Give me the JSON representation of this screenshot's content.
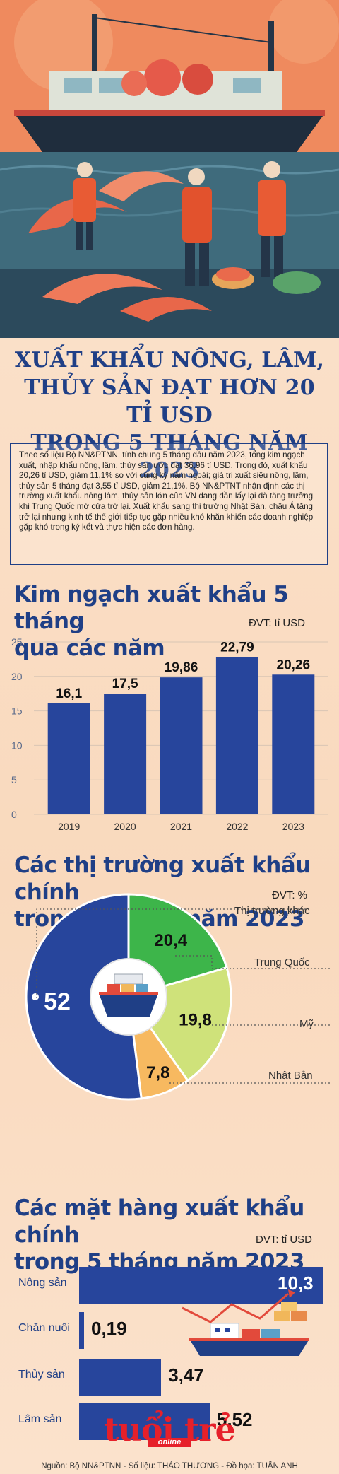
{
  "title": {
    "line1": "XUẤT KHẨU NÔNG, LÂM,",
    "line2": "THỦY SẢN ĐẠT HƠN 20 TỈ USD",
    "line3": "TRONG 5 THÁNG NĂM 2023"
  },
  "intro": "Theo số liệu Bộ NN&PTNN, tính chung 5 tháng đầu năm 2023, tổng kim ngạch xuất, nhập khẩu nông, lâm, thủy sản ước đạt 36,96 tỉ USD. Trong đó, xuất khẩu 20,26 tỉ USD, giảm 11,1% so với cùng kỳ năm ngoái; giá trị xuất siêu nông, lâm, thủy sản 5 tháng đạt 3,55 tỉ USD, giảm 21,1%. Bộ NN&PTNT nhận định các thị trường xuất khẩu nông lâm, thủy sản lớn của VN đang dần lấy lại đà tăng trưởng khi Trung Quốc mở cửa trở lại. Xuất khẩu sang thị trường Nhật Bản, châu Á tăng trở lại nhưng kinh tế thế giới tiếp tục gặp nhiều khó khăn khiến các doanh nghiệp gặp khó trong ký kết và thực hiện các đơn hàng.",
  "chart_data": [
    {
      "type": "bar",
      "title": "Kim ngạch xuất khẩu 5 tháng qua các năm",
      "unit": "ĐVT: tỉ USD",
      "categories": [
        "2019",
        "2020",
        "2021",
        "2022",
        "2023"
      ],
      "values": [
        16.1,
        17.5,
        19.86,
        22.79,
        20.26
      ],
      "value_labels": [
        "16,1",
        "17,5",
        "19,86",
        "22,79",
        "20,26"
      ],
      "yticks": [
        "0",
        "5",
        "10",
        "15",
        "20",
        "25"
      ],
      "ylim": [
        0,
        25
      ],
      "grid": true,
      "color": "#27459c"
    },
    {
      "type": "pie",
      "title": "Các thị trường xuất khẩu chính trong 5 tháng năm 2023",
      "unit": "ĐVT: %",
      "slices": [
        {
          "label": "Trung Quốc",
          "value": 20.4,
          "value_label": "20,4",
          "color": "#3db54a"
        },
        {
          "label": "Mỹ",
          "value": 19.8,
          "value_label": "19,8",
          "color": "#cfe27a"
        },
        {
          "label": "Nhật Bản",
          "value": 7.8,
          "value_label": "7,8",
          "color": "#f7b960"
        },
        {
          "label": "Thị trường khác",
          "value": 52,
          "value_label": "52",
          "color": "#27459c"
        }
      ]
    },
    {
      "type": "bar",
      "orientation": "horizontal",
      "title": "Các mặt hàng xuất khẩu chính trong 5 tháng năm 2023",
      "unit": "ĐVT: tỉ USD",
      "categories": [
        "Nông sản",
        "Chăn nuôi",
        "Thủy sản",
        "Lâm sản"
      ],
      "values": [
        10.3,
        0.19,
        3.47,
        5.52
      ],
      "value_labels": [
        "10,3",
        "0,19",
        "3,47",
        "5,52"
      ],
      "color": "#27459c"
    }
  ],
  "bar_title": {
    "line1": "Kim ngạch xuất khẩu 5 tháng",
    "line2": "qua các năm"
  },
  "pie_title": {
    "line1": "Các thị trường xuất khẩu chính",
    "line2": "trong 5 tháng năm 2023"
  },
  "prod_title": {
    "line1": "Các mặt hàng xuất khẩu chính",
    "line2": "trong 5 tháng năm 2023"
  },
  "brand": {
    "logo": "tuổi trẻ",
    "sub": "online"
  },
  "footer": "Nguồn: Bộ NN&PTNN - Số liệu: THẢO THƯƠNG - Đồ họa: TUẤN ANH",
  "colors": {
    "brand_blue": "#1f3f86",
    "bar_blue": "#27459c",
    "brand_red": "#e6202a"
  },
  "icons": [
    "ship-hero-illustration",
    "shrimp-illustration",
    "cargo-ship-icon",
    "container-ship-icon"
  ]
}
